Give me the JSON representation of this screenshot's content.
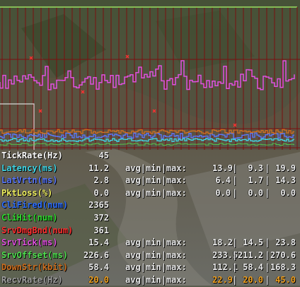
{
  "colors": {
    "tickrate": "#ffffff",
    "latency": "#40d8e8",
    "latvrtn": "#5a78ff",
    "pktloss": "#f0f060",
    "clifired": "#3070ff",
    "clihit": "#30e030",
    "srvdmgbnd": "#ff3030",
    "srvtick": "#e050e0",
    "srvoffset": "#50e050",
    "downstr": "#d07020",
    "recvrate": "#a0a0a0",
    "accent_orange": "#f0a020",
    "graph_grid": "#7a1010",
    "graph_top": "#9adf60"
  },
  "stats": [
    {
      "key": "tickrate",
      "label": "TickRate(Hz)",
      "value": "45",
      "amm_label": "",
      "avg": "",
      "min": "",
      "max": ""
    },
    {
      "key": "latency",
      "label": "Latency(ms)",
      "value": "11.2",
      "amm_label": "avg|min|max:",
      "avg": "13.9",
      "min": "9.3",
      "max": "19.9"
    },
    {
      "key": "latvrtn",
      "label": "LatVrtn(ms)",
      "value": "2.8",
      "amm_label": "avg|min|max:",
      "avg": "6.4",
      "min": "1.7",
      "max": "14.3"
    },
    {
      "key": "pktloss",
      "label": "PktLoss(%)",
      "value": "0.0",
      "amm_label": "avg|min|max:",
      "avg": "0.0",
      "min": "0.0",
      "max": "0.0"
    },
    {
      "key": "clifired",
      "label": "CliFired(num)",
      "value": "2365",
      "amm_label": "",
      "avg": "",
      "min": "",
      "max": ""
    },
    {
      "key": "clihit",
      "label": "CliHit(num)",
      "value": "372",
      "amm_label": "",
      "avg": "",
      "min": "",
      "max": ""
    },
    {
      "key": "srvdmgbnd",
      "label": "SrvDmgBnd(num)",
      "value": "361",
      "amm_label": "",
      "avg": "",
      "min": "",
      "max": ""
    },
    {
      "key": "srvtick",
      "label": "SrvTick(ms)",
      "value": "15.4",
      "amm_label": "avg|min|max:",
      "avg": "18.2",
      "min": "14.5",
      "max": "23.8"
    },
    {
      "key": "srvoffset",
      "label": "SrvOffset(ms)",
      "value": "226.6",
      "amm_label": "avg|min|max:",
      "avg": "233.5",
      "min": "211.2",
      "max": "270.6"
    },
    {
      "key": "downstr",
      "label": "DownStr(kbit)",
      "value": "58.4",
      "amm_label": "avg|min|max:",
      "avg": "112.1",
      "min": "58.4",
      "max": "168.3"
    },
    {
      "key": "recvrate",
      "label": "RecvRate(Hz)",
      "value": "20.0",
      "amm_label": "avg|min|max:",
      "avg": "22.9",
      "min": "20.0",
      "max": "45.0"
    }
  ]
}
